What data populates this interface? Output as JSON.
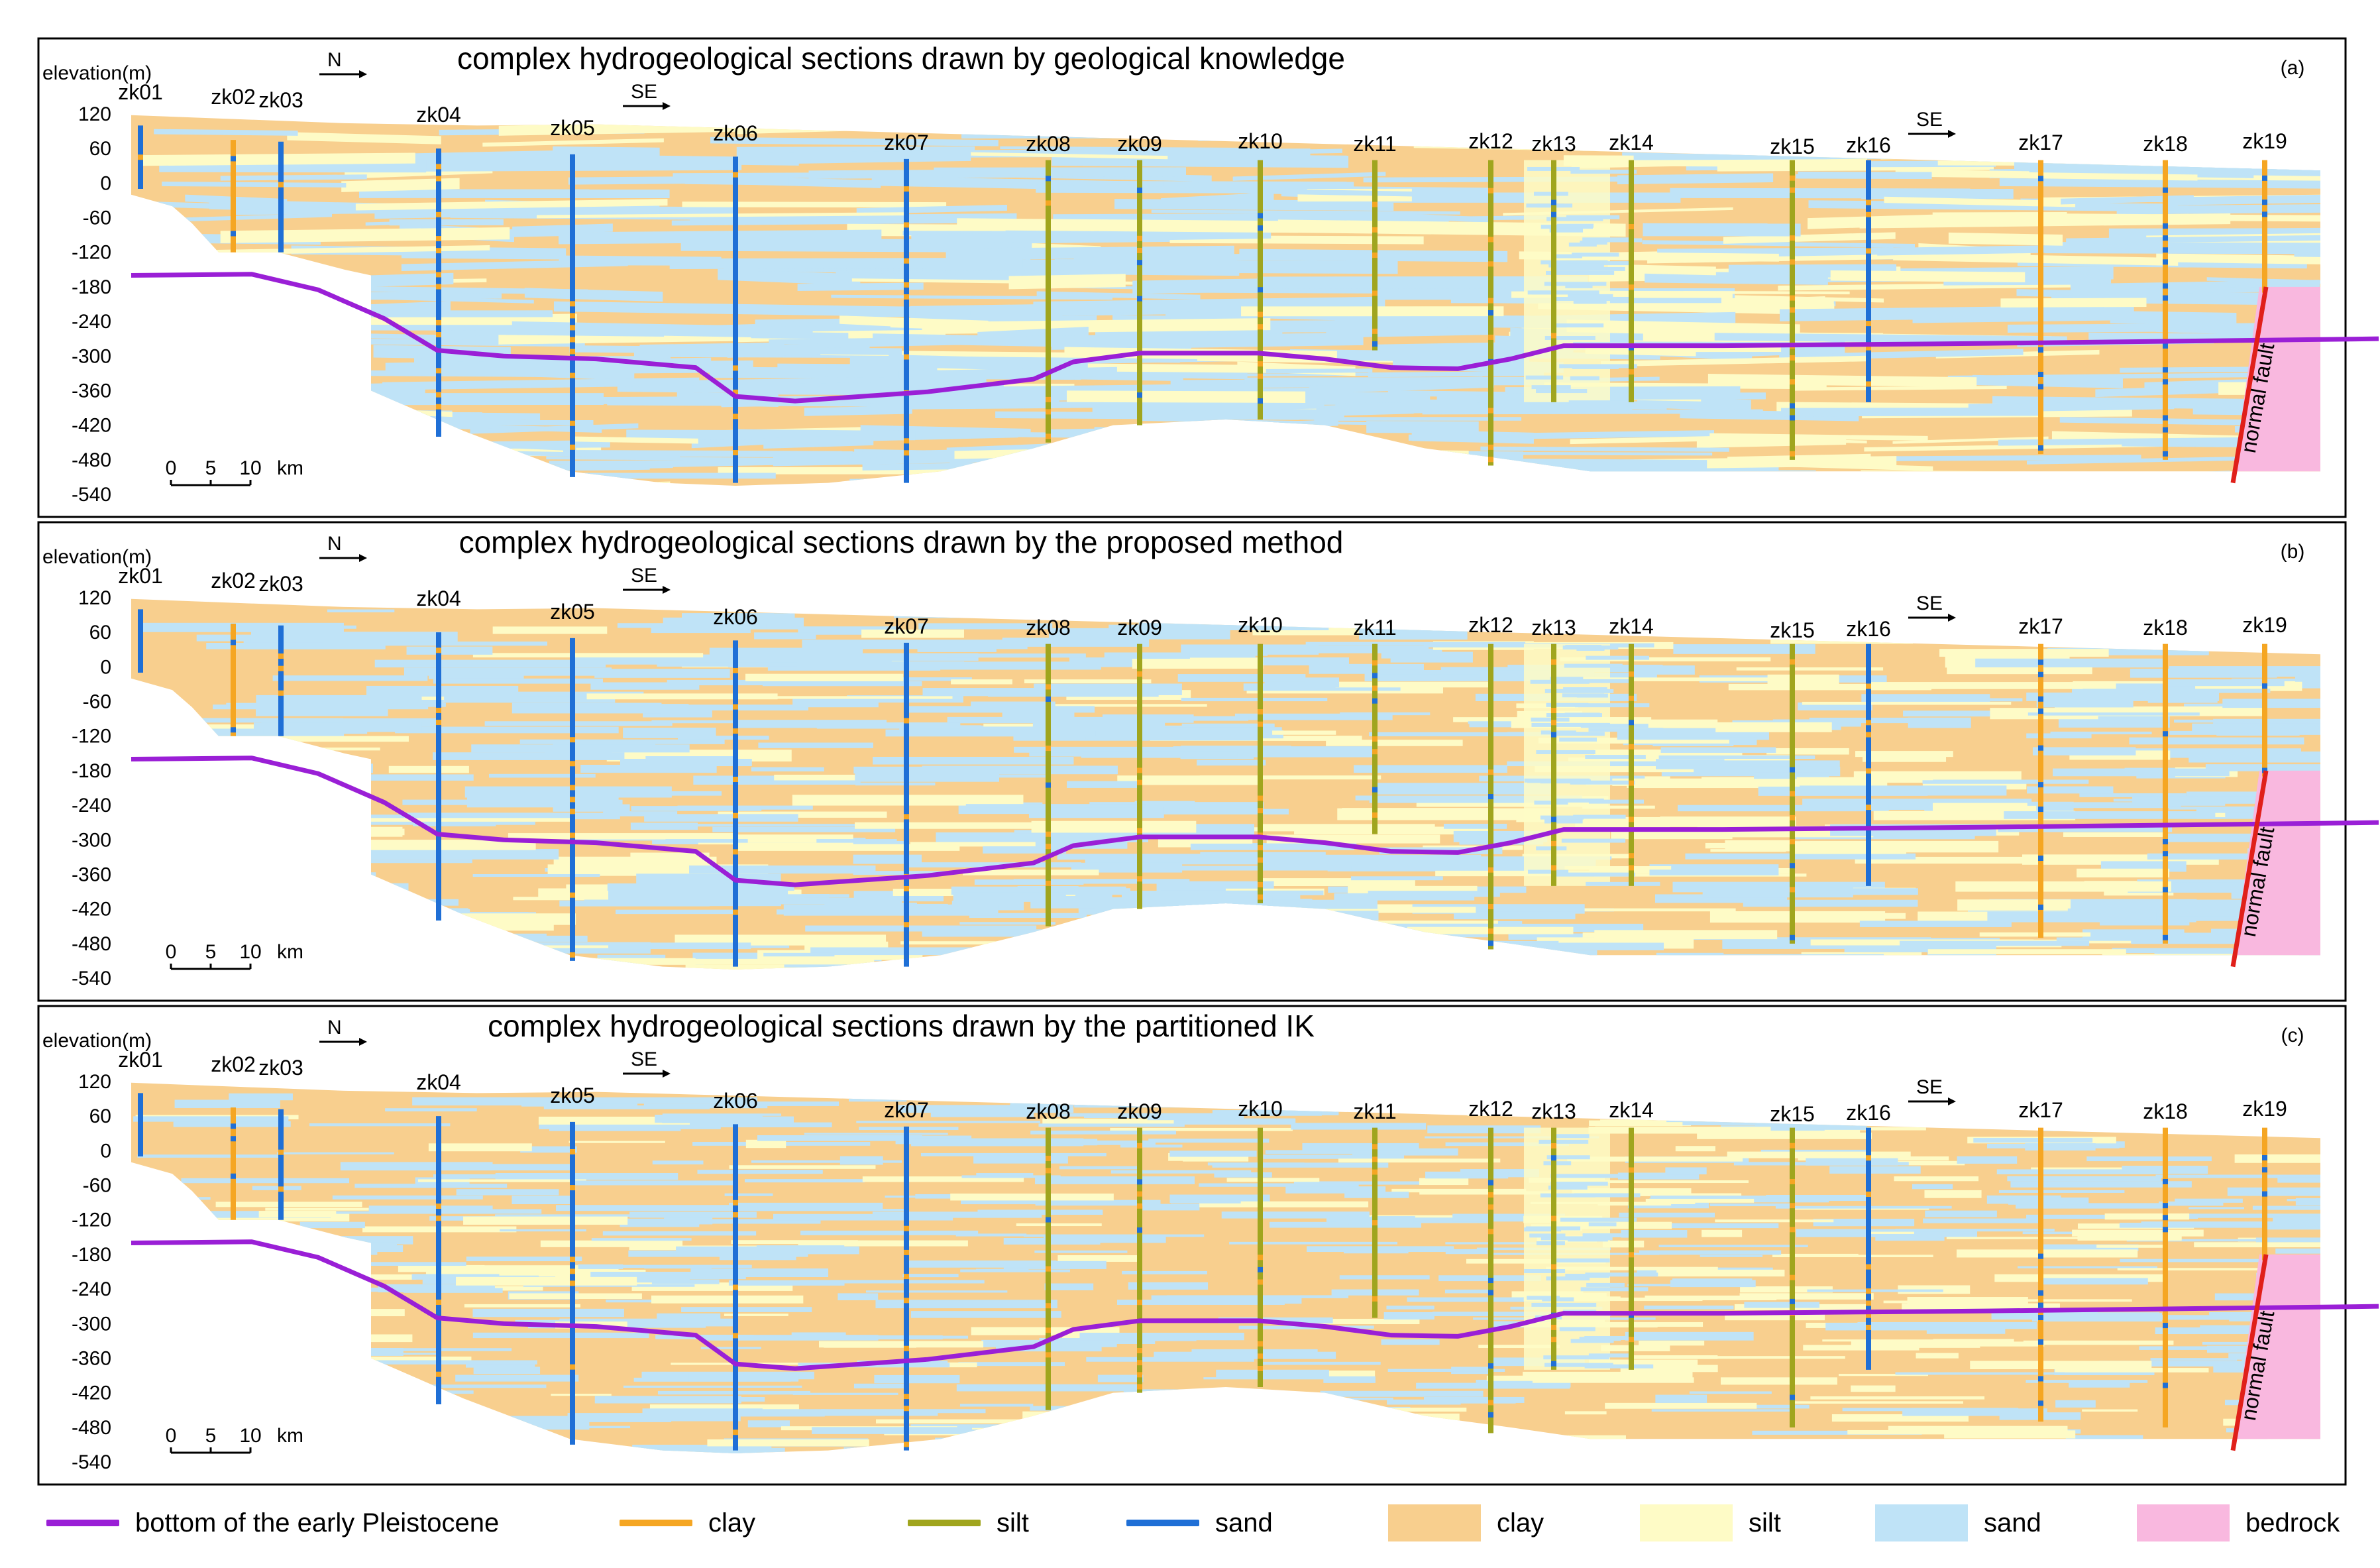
{
  "panels": [
    {
      "title": "complex hydrogeological sections drawn by geological knowledge",
      "tag": "(a)",
      "variant": "knowledge"
    },
    {
      "title": "complex hydrogeological sections drawn by the proposed method",
      "tag": "(b)",
      "variant": "proposed"
    },
    {
      "title": "complex hydrogeological sections drawn by the partitioned IK",
      "tag": "(c)",
      "variant": "partitioned"
    }
  ],
  "yaxis": {
    "label": "elevation(m)",
    "ticks": [
      "120",
      "60",
      "0",
      "-60",
      "-120",
      "-180",
      "-240",
      "-300",
      "-360",
      "-420",
      "-480",
      "-540"
    ],
    "range": [
      -540,
      120
    ]
  },
  "direction_labels": [
    "N",
    "SE",
    "SE"
  ],
  "scale_bar": {
    "ticks": [
      "0",
      "5",
      "10"
    ],
    "unit": "km"
  },
  "fault_label": "normal fault",
  "wells": [
    "zk01",
    "zk02",
    "zk03",
    "zk04",
    "zk05",
    "zk06",
    "zk07",
    "zk08",
    "zk09",
    "zk10",
    "zk11",
    "zk12",
    "zk13",
    "zk14",
    "zk15",
    "zk16",
    "zk17",
    "zk18",
    "zk19"
  ],
  "legend": [
    {
      "type": "line",
      "color": "#9a1fd6",
      "label": "bottom of the early Pleistocene"
    },
    {
      "type": "line",
      "color": "#f5a623",
      "label": "clay"
    },
    {
      "type": "line",
      "color": "#a0a51e",
      "label": "silt"
    },
    {
      "type": "line",
      "color": "#1f6fd6",
      "label": "sand"
    },
    {
      "type": "box",
      "color": "#f8cf8e",
      "label": "clay"
    },
    {
      "type": "box",
      "color": "#fefbc6",
      "label": "silt"
    },
    {
      "type": "box",
      "color": "#bfe3f7",
      "label": "sand"
    },
    {
      "type": "box",
      "color": "#f9b8df",
      "label": "bedrock"
    }
  ],
  "colors": {
    "clay_fill": "#f8cf8e",
    "silt_fill": "#fefbc6",
    "sand_fill": "#bfe3f7",
    "bedrock_fill": "#f9b8df",
    "clay_line": "#f5a623",
    "silt_line": "#a0a51e",
    "sand_line": "#1f6fd6",
    "pleistocene": "#9a1fd6",
    "fault": "#e0201a"
  }
}
